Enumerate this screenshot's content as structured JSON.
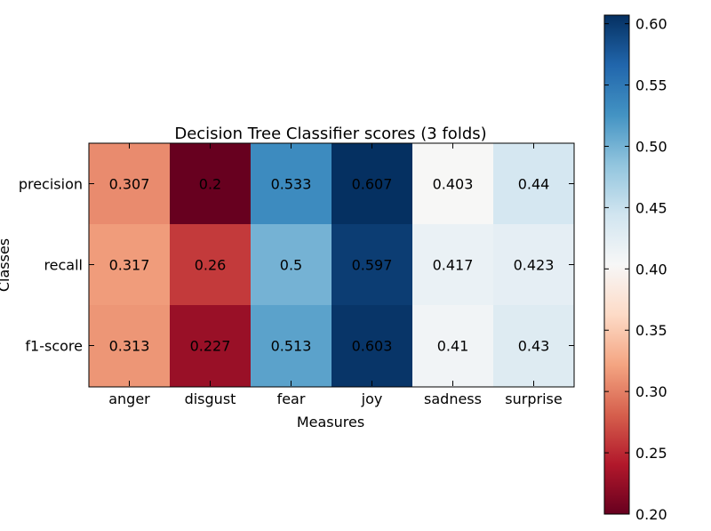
{
  "chart_data": {
    "type": "heatmap",
    "title": "Decision Tree Classifier scores (3 folds)",
    "xlabel": "Measures",
    "ylabel": "Classes",
    "columns": [
      "anger",
      "disgust",
      "fear",
      "joy",
      "sadness",
      "surprise"
    ],
    "rows": [
      "precision",
      "recall",
      "f1-score"
    ],
    "values": [
      [
        0.307,
        0.2,
        0.533,
        0.607,
        0.403,
        0.44
      ],
      [
        0.317,
        0.26,
        0.5,
        0.597,
        0.417,
        0.423
      ],
      [
        0.313,
        0.227,
        0.513,
        0.603,
        0.41,
        0.43
      ]
    ],
    "cell_labels": [
      [
        "0.307",
        "0.2",
        "0.533",
        "0.607",
        "0.403",
        "0.44"
      ],
      [
        "0.317",
        "0.26",
        "0.5",
        "0.597",
        "0.417",
        "0.423"
      ],
      [
        "0.313",
        "0.227",
        "0.513",
        "0.603",
        "0.41",
        "0.43"
      ]
    ],
    "colormap": "RdBu",
    "colorbar": {
      "range": [
        0.2,
        0.607
      ],
      "ticks": [
        0.2,
        0.25,
        0.3,
        0.35,
        0.4,
        0.45,
        0.5,
        0.55,
        0.6
      ],
      "tick_labels": [
        "0.20",
        "0.25",
        "0.30",
        "0.35",
        "0.40",
        "0.45",
        "0.50",
        "0.55",
        "0.60"
      ],
      "placement": "right"
    },
    "grid": false
  }
}
